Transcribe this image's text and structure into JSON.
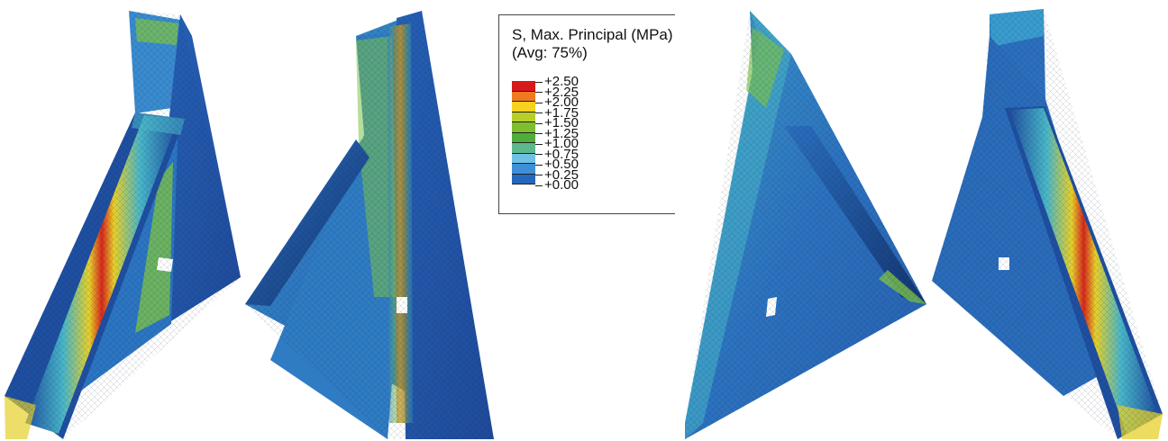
{
  "legend": {
    "title": "S, Max. Principal (MPa)",
    "subtitle": "(Avg: 75%)",
    "ticks": [
      "+2.50",
      "+2.25",
      "+2.00",
      "+1.75",
      "+1.50",
      "+1.25",
      "+1.00",
      "+0.75",
      "+0.50",
      "+0.25",
      "+0.00"
    ],
    "colors": [
      "#d7191c",
      "#f07a20",
      "#f5d21f",
      "#b8cf2a",
      "#7dbf2c",
      "#4fad3c",
      "#5db98d",
      "#6ec1e4",
      "#3f8fd6",
      "#2468be",
      "#1c4a9c"
    ]
  },
  "palette": {
    "low": "#1f4fa0",
    "mid_low": "#2e7bc8",
    "mid": "#49b6c9",
    "mid_high": "#7cc24a",
    "high": "#e6d02a",
    "peak": "#d7261c"
  },
  "views": [
    {
      "name": "view-1"
    },
    {
      "name": "view-2"
    },
    {
      "name": "view-3"
    },
    {
      "name": "view-4"
    }
  ]
}
